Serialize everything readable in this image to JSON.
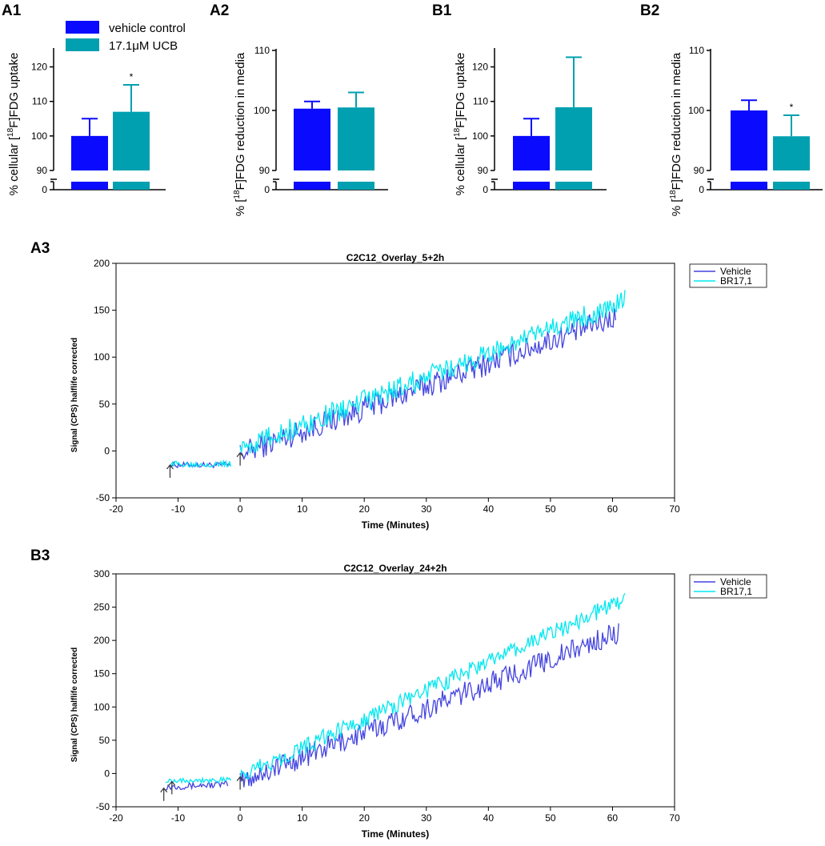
{
  "colors": {
    "vehicle": "#0a0aff",
    "ucb": "#00a0b0",
    "vehicle_line": "#4444e0",
    "br_line": "#00e8f0",
    "axis": "#000000"
  },
  "legend_top": {
    "vehicle": "vehicle control",
    "ucb": "17.1μM UCB"
  },
  "chart_data": [
    {
      "id": "A1",
      "type": "bar",
      "panel_label": "A1",
      "ylabel_pre": "% cellular [",
      "ylabel_sup": "18",
      "ylabel_post": "F]FDG  uptake",
      "categories": [
        "vehicle control",
        "17.1μM UCB"
      ],
      "values": [
        100,
        107
      ],
      "errors": [
        5,
        7.8
      ],
      "yticks": [
        "120",
        "110",
        "100",
        "90",
        "0"
      ],
      "ylim": [
        0,
        125
      ],
      "axis_break": [
        0,
        90
      ],
      "annotations": [
        {
          "bar": 1,
          "text": "*"
        }
      ]
    },
    {
      "id": "A2",
      "type": "bar",
      "panel_label": "A2",
      "ylabel_pre": "% [",
      "ylabel_sup": "18",
      "ylabel_post": "F]FDG  reduction in media",
      "categories": [
        "vehicle control",
        "17.1μM UCB"
      ],
      "values": [
        100.3,
        100.5
      ],
      "errors": [
        1.2,
        2.5
      ],
      "yticks": [
        "110",
        "100",
        "90",
        "0"
      ],
      "ylim": [
        0,
        110
      ],
      "axis_break": [
        0,
        90
      ],
      "annotations": []
    },
    {
      "id": "B1",
      "type": "bar",
      "panel_label": "B1",
      "ylabel_pre": "% cellular [",
      "ylabel_sup": "18",
      "ylabel_post": "F]FDG  uptake",
      "categories": [
        "vehicle control",
        "17.1μM UCB"
      ],
      "values": [
        100,
        108.3
      ],
      "errors": [
        5,
        14.5
      ],
      "yticks": [
        "120",
        "110",
        "100",
        "90",
        "0"
      ],
      "ylim": [
        0,
        125
      ],
      "axis_break": [
        0,
        90
      ],
      "annotations": []
    },
    {
      "id": "B2",
      "type": "bar",
      "panel_label": "B2",
      "ylabel_pre": "% [",
      "ylabel_sup": "18",
      "ylabel_post": "F]FDG  reduction in media",
      "categories": [
        "vehicle control",
        "17.1μM UCB"
      ],
      "values": [
        100,
        95.7
      ],
      "errors": [
        1.7,
        3.5
      ],
      "yticks": [
        "110",
        "100",
        "90",
        "0"
      ],
      "ylim": [
        0,
        110
      ],
      "axis_break": [
        0,
        90
      ],
      "annotations": [
        {
          "bar": 1,
          "text": "*"
        }
      ]
    },
    {
      "id": "A3",
      "type": "line",
      "panel_label": "A3",
      "title": "C2C12_Overlay_5+2h",
      "xlabel": "Time (Minutes)",
      "ylabel": "Signal (CPS) halflife corrected",
      "xlim": [
        -20,
        70
      ],
      "ylim": [
        -50,
        200
      ],
      "xticks": [
        -20,
        -10,
        0,
        10,
        20,
        30,
        40,
        50,
        60,
        70
      ],
      "yticks": [
        -50,
        0,
        50,
        100,
        150,
        200
      ],
      "legend_position": "top-right",
      "markers": [
        {
          "x": -11.3,
          "y": -15
        },
        {
          "x": 0,
          "y": -2
        }
      ],
      "series": [
        {
          "name": "Vehicle",
          "segments": [
            {
              "x_start": -11.3,
              "x_end": -1.5,
              "start": -15,
              "end": -15,
              "noise": 3
            },
            {
              "x_start": 0,
              "x_end": 60.5,
              "start": -3,
              "end": 143,
              "noise": 13
            }
          ]
        },
        {
          "name": "BR17,1",
          "segments": [
            {
              "x_start": -11.3,
              "x_end": -1.5,
              "start": -14,
              "end": -14,
              "noise": 3
            },
            {
              "x_start": 0,
              "x_end": 62,
              "start": 2,
              "end": 160,
              "noise": 12
            }
          ]
        }
      ]
    },
    {
      "id": "B3",
      "type": "line",
      "panel_label": "B3",
      "title": "C2C12_Overlay_24+2h",
      "xlabel": "Time (Minutes)",
      "ylabel": "Signal (CPS) halflife corrected",
      "xlim": [
        -20,
        70
      ],
      "ylim": [
        -50,
        300
      ],
      "xticks": [
        -20,
        -10,
        0,
        10,
        20,
        30,
        40,
        50,
        60,
        70
      ],
      "yticks": [
        -50,
        0,
        50,
        100,
        150,
        200,
        250,
        300
      ],
      "legend_position": "top-right",
      "markers": [
        {
          "x": -12.3,
          "y": -22
        },
        {
          "x": -11,
          "y": -12
        },
        {
          "x": 0,
          "y": -5
        }
      ],
      "series": [
        {
          "name": "Vehicle",
          "segments": [
            {
              "x_start": -12,
              "x_end": -2,
              "start": -20,
              "end": -16,
              "noise": 5
            },
            {
              "x_start": 0,
              "x_end": 61,
              "start": -12,
              "end": 212,
              "noise": 17
            }
          ]
        },
        {
          "name": "BR17,1",
          "segments": [
            {
              "x_start": -12,
              "x_end": -1.5,
              "start": -10,
              "end": -10,
              "noise": 4
            },
            {
              "x_start": 0,
              "x_end": 62,
              "start": -4,
              "end": 262,
              "noise": 13
            }
          ]
        }
      ]
    }
  ]
}
